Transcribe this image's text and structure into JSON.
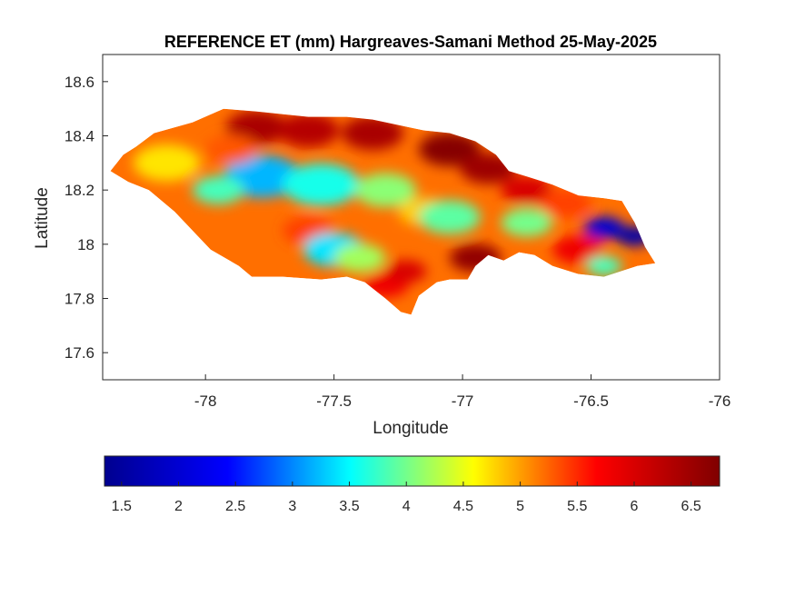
{
  "chart_data": {
    "type": "heatmap",
    "title": "REFERENCE ET (mm) Hargreaves-Samani Method  25-May-2025",
    "xlabel": "Longitude",
    "ylabel": "Latitude",
    "xlim": [
      -78.4,
      -76
    ],
    "ylim": [
      17.5,
      18.7
    ],
    "xticks": [
      -78,
      -77.5,
      -77,
      -76.5,
      -76
    ],
    "yticks": [
      17.6,
      17.8,
      18,
      18.2,
      18.4,
      18.6
    ],
    "colorbar": {
      "position": "bottom",
      "colormap": "jet",
      "colors": [
        "#00008f",
        "#0000ff",
        "#00ffff",
        "#ffff00",
        "#ff0000",
        "#800000"
      ],
      "clim": [
        1.35,
        6.75
      ],
      "ticks": [
        1.5,
        2,
        2.5,
        3,
        3.5,
        4,
        4.5,
        5,
        5.5,
        6,
        6.5
      ]
    },
    "boundary": [
      [
        -78.37,
        18.27
      ],
      [
        -78.32,
        18.33
      ],
      [
        -78.27,
        18.36
      ],
      [
        -78.2,
        18.41
      ],
      [
        -78.05,
        18.45
      ],
      [
        -77.93,
        18.5
      ],
      [
        -77.8,
        18.49
      ],
      [
        -77.6,
        18.47
      ],
      [
        -77.45,
        18.47
      ],
      [
        -77.35,
        18.46
      ],
      [
        -77.25,
        18.44
      ],
      [
        -77.15,
        18.42
      ],
      [
        -77.05,
        18.41
      ],
      [
        -76.95,
        18.38
      ],
      [
        -76.87,
        18.33
      ],
      [
        -76.82,
        18.27
      ],
      [
        -76.75,
        18.25
      ],
      [
        -76.65,
        18.22
      ],
      [
        -76.55,
        18.18
      ],
      [
        -76.45,
        18.17
      ],
      [
        -76.38,
        18.16
      ],
      [
        -76.33,
        18.08
      ],
      [
        -76.29,
        17.99
      ],
      [
        -76.25,
        17.93
      ],
      [
        -76.32,
        17.92
      ],
      [
        -76.45,
        17.88
      ],
      [
        -76.55,
        17.89
      ],
      [
        -76.65,
        17.92
      ],
      [
        -76.72,
        17.96
      ],
      [
        -76.78,
        17.97
      ],
      [
        -76.84,
        17.94
      ],
      [
        -76.9,
        17.96
      ],
      [
        -76.95,
        17.92
      ],
      [
        -76.98,
        17.87
      ],
      [
        -77.05,
        17.87
      ],
      [
        -77.1,
        17.86
      ],
      [
        -77.17,
        17.81
      ],
      [
        -77.2,
        17.74
      ],
      [
        -77.24,
        17.75
      ],
      [
        -77.3,
        17.8
      ],
      [
        -77.38,
        17.86
      ],
      [
        -77.45,
        17.88
      ],
      [
        -77.55,
        17.87
      ],
      [
        -77.7,
        17.88
      ],
      [
        -77.82,
        17.88
      ],
      [
        -77.87,
        17.92
      ],
      [
        -77.98,
        17.98
      ],
      [
        -78.05,
        18.05
      ],
      [
        -78.12,
        18.12
      ],
      [
        -78.22,
        18.2
      ],
      [
        -78.3,
        18.23
      ]
    ],
    "field": [
      [
        -77.8,
        18.43,
        6.4,
        0.12
      ],
      [
        -77.6,
        18.42,
        6.3,
        0.12
      ],
      [
        -77.35,
        18.41,
        6.4,
        0.12
      ],
      [
        -77.05,
        18.35,
        6.7,
        0.12
      ],
      [
        -76.9,
        18.28,
        6.5,
        0.11
      ],
      [
        -76.75,
        18.2,
        6.0,
        0.1
      ],
      [
        -77.78,
        18.25,
        3.2,
        0.15
      ],
      [
        -77.55,
        18.22,
        3.6,
        0.15
      ],
      [
        -77.95,
        18.2,
        3.8,
        0.1
      ],
      [
        -77.6,
        18.05,
        5.4,
        0.1
      ],
      [
        -77.3,
        18.2,
        4.1,
        0.12
      ],
      [
        -77.5,
        17.98,
        3.4,
        0.12
      ],
      [
        -77.4,
        17.95,
        4.2,
        0.1
      ],
      [
        -77.15,
        18.12,
        4.8,
        0.1
      ],
      [
        -77.05,
        18.1,
        3.9,
        0.12
      ],
      [
        -76.95,
        17.95,
        6.6,
        0.1
      ],
      [
        -77.3,
        17.85,
        5.8,
        0.09
      ],
      [
        -77.22,
        17.9,
        6.0,
        0.08
      ],
      [
        -78.15,
        18.3,
        4.7,
        0.13
      ],
      [
        -77.9,
        18.35,
        5.3,
        0.1
      ],
      [
        -76.75,
        18.08,
        4.0,
        0.1
      ],
      [
        -76.6,
        18.15,
        5.4,
        0.1
      ],
      [
        -76.45,
        18.06,
        2.0,
        0.08
      ],
      [
        -76.33,
        18.03,
        1.6,
        0.07
      ],
      [
        -76.55,
        17.98,
        5.8,
        0.1
      ],
      [
        -76.45,
        17.92,
        3.8,
        0.07
      ]
    ]
  }
}
